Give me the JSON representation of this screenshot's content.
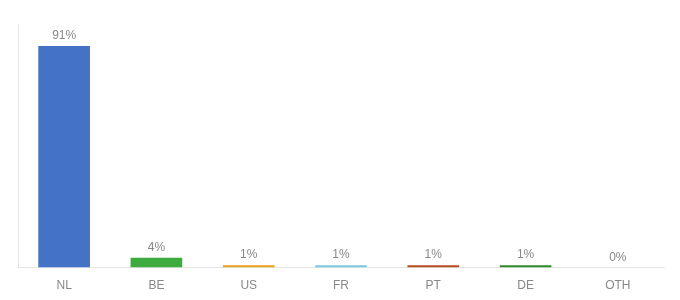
{
  "chart_data": {
    "type": "bar",
    "categories": [
      "NL",
      "BE",
      "US",
      "FR",
      "PT",
      "DE",
      "OTH"
    ],
    "values": [
      91,
      4,
      1,
      1,
      1,
      1,
      0
    ],
    "value_labels": [
      "91%",
      "4%",
      "1%",
      "1%",
      "1%",
      "1%",
      "0%"
    ],
    "colors": [
      "#4472C4",
      "#3dab3d",
      "#e8a020",
      "#7ec8e3",
      "#b84c20",
      "#2e8b2e",
      "#aaaaaa"
    ],
    "ylim": [
      0,
      100
    ],
    "grid": false,
    "data_labels": true,
    "tick_labels": "x"
  }
}
